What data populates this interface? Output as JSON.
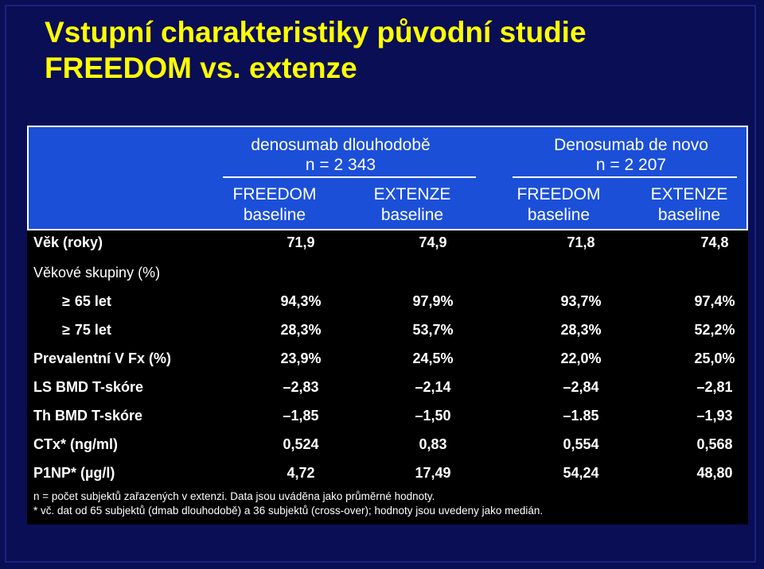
{
  "title": {
    "line1": "Vstupní charakteristiky původní studie",
    "line2": "FREEDOM vs. extenze"
  },
  "groups": [
    {
      "name": "denosumab dlouhodobě",
      "n": "n = 2 343"
    },
    {
      "name": "Denosumab de novo",
      "n": "n = 2 207"
    }
  ],
  "columns": [
    {
      "l1": "FREEDOM",
      "l2": "baseline"
    },
    {
      "l1": "EXTENZE",
      "l2": "baseline"
    },
    {
      "l1": "FREEDOM",
      "l2": "baseline"
    },
    {
      "l1": "EXTENZE",
      "l2": "baseline"
    }
  ],
  "rows": [
    {
      "label": "Věk (roky)",
      "values": [
        "71,9",
        "74,9",
        "71,8",
        "74,8"
      ]
    },
    {
      "label": "Věkové skupiny (%)",
      "values": [
        "",
        "",
        "",
        ""
      ]
    },
    {
      "label": "65 let",
      "ge": "≥",
      "values": [
        "94,3%",
        "97,9%",
        "93,7%",
        "97,4%"
      ]
    },
    {
      "label": "75 let",
      "ge": "≥",
      "values": [
        "28,3%",
        "53,7%",
        "28,3%",
        "52,2%"
      ]
    },
    {
      "label": "Prevalentní V Fx (%)",
      "values": [
        "23,9%",
        "24,5%",
        "22,0%",
        "25,0%"
      ]
    },
    {
      "label": "LS BMD T-skóre",
      "values": [
        "–2,83",
        "–2,14",
        "–2,84",
        "–2,81"
      ]
    },
    {
      "label": "Th BMD T-skóre",
      "values": [
        "–1,85",
        "–1,50",
        "–1.85",
        "–1,93"
      ]
    },
    {
      "label": "CTx* (ng/ml)",
      "values": [
        "0,524",
        "0,83",
        "0,554",
        "0,568"
      ]
    },
    {
      "label": "P1NP* (µg/l)",
      "values": [
        "4,72",
        "17,49",
        "54,24",
        "48,80"
      ]
    }
  ],
  "footnotes": {
    "line1": "n = počet subjektů  zařazených v extenzi. Data jsou uváděna jako průměrné hodnoty.",
    "line2": "* vč. dat od  65 subjektů (dmab dlouhodobě) a 36 subjektů  (cross-over); hodnoty jsou uvedeny jako medián."
  },
  "colors": {
    "background": "#0a0e55",
    "title": "#ffff00",
    "header_band": "#1b4fd8",
    "table_body": "#000000",
    "text": "#ffffff"
  }
}
